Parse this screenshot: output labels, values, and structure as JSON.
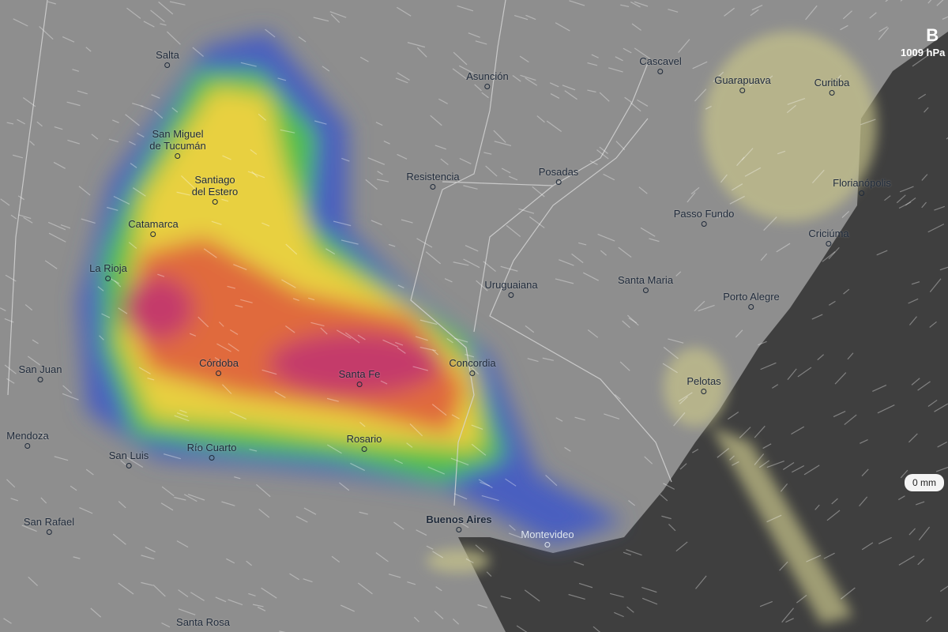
{
  "map": {
    "layer": "precipitation",
    "colors": {
      "land": "#8e8e8e",
      "ocean": "#3f3f3f",
      "rain_low": "#4a5fc0",
      "rain_mid": "#4fc04a",
      "rain_high": "#e8d040",
      "rain_heavy": "#e06a3c",
      "rain_extreme": "#c43a6a",
      "snow": "#c8c48a"
    },
    "cities": [
      {
        "name": "Salta"
      },
      {
        "name": "San Miguel\nde Tucumán"
      },
      {
        "name": "Santiago\ndel Estero"
      },
      {
        "name": "Catamarca"
      },
      {
        "name": "La Rioja"
      },
      {
        "name": "Córdoba"
      },
      {
        "name": "San Juan"
      },
      {
        "name": "Mendoza"
      },
      {
        "name": "San Luis"
      },
      {
        "name": "Río Cuarto"
      },
      {
        "name": "San Rafael"
      },
      {
        "name": "Santa Rosa"
      },
      {
        "name": "Rosario"
      },
      {
        "name": "Santa Fe"
      },
      {
        "name": "Buenos Aires"
      },
      {
        "name": "Montevideo"
      },
      {
        "name": "Concordia"
      },
      {
        "name": "Uruguaiana"
      },
      {
        "name": "Resistencia"
      },
      {
        "name": "Posadas"
      },
      {
        "name": "Asunción"
      },
      {
        "name": "Cascavel"
      },
      {
        "name": "Guarapuava"
      },
      {
        "name": "Curitiba"
      },
      {
        "name": "Florianópolis"
      },
      {
        "name": "Passo Fundo"
      },
      {
        "name": "Criciúma"
      },
      {
        "name": "Santa Maria"
      },
      {
        "name": "Porto Alegre"
      },
      {
        "name": "Pelotas"
      }
    ],
    "pressure": {
      "label": "B",
      "value": "1009 hPa"
    },
    "precip_readout": "0 mm"
  }
}
